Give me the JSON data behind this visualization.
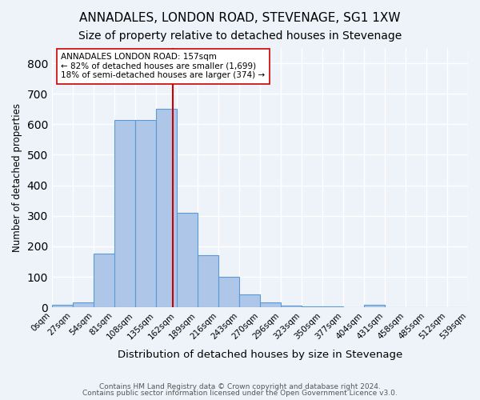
{
  "title": "ANNADALES, LONDON ROAD, STEVENAGE, SG1 1XW",
  "subtitle": "Size of property relative to detached houses in Stevenage",
  "xlabel": "Distribution of detached houses by size in Stevenage",
  "ylabel": "Number of detached properties",
  "footnote1": "Contains HM Land Registry data © Crown copyright and database right 2024.",
  "footnote2": "Contains public sector information licensed under the Open Government Licence v3.0.",
  "annotation_title": "ANNADALES LONDON ROAD: 157sqm",
  "annotation_line1": "← 82% of detached houses are smaller (1,699)",
  "annotation_line2": "18% of semi-detached houses are larger (374) →",
  "property_size": 157,
  "bin_edges": [
    0,
    27,
    54,
    81,
    108,
    135,
    162,
    189,
    216,
    243,
    270,
    297,
    324,
    351,
    378,
    405,
    432,
    459,
    486,
    513,
    540
  ],
  "bin_labels": [
    "0sqm",
    "27sqm",
    "54sqm",
    "81sqm",
    "108sqm",
    "135sqm",
    "162sqm",
    "189sqm",
    "216sqm",
    "243sqm",
    "270sqm",
    "296sqm",
    "323sqm",
    "350sqm",
    "377sqm",
    "404sqm",
    "431sqm",
    "458sqm",
    "485sqm",
    "512sqm",
    "539sqm"
  ],
  "bar_heights": [
    8,
    15,
    175,
    615,
    615,
    650,
    310,
    170,
    100,
    42,
    17,
    6,
    3,
    3,
    0,
    8,
    0,
    0,
    0,
    0
  ],
  "bar_color": "#aec6e8",
  "bar_edge_color": "#5b9bd5",
  "vline_color": "#cc0000",
  "vline_x": 157,
  "bg_color": "#eef3fa",
  "plot_bg_color": "#eef3fa",
  "grid_color": "#ffffff",
  "ylim": [
    0,
    850
  ],
  "yticks": [
    0,
    100,
    200,
    300,
    400,
    500,
    600,
    700,
    800
  ],
  "title_fontsize": 11,
  "subtitle_fontsize": 10,
  "annotation_box_color": "#ffffff",
  "annotation_box_edge": "#cc0000"
}
